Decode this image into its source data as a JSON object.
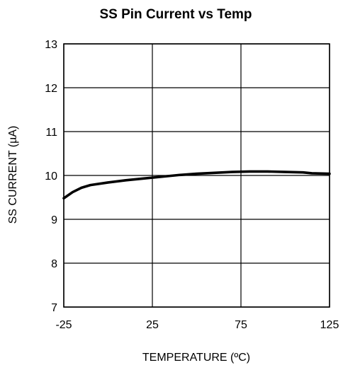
{
  "chart_data": {
    "type": "line",
    "title": "SS Pin Current vs Temp",
    "xlabel": "TEMPERATURE (ºC)",
    "ylabel": "SS CURRENT (µA)",
    "xlim": [
      -25,
      125
    ],
    "ylim": [
      7,
      13
    ],
    "x_ticks": [
      -25,
      25,
      75,
      125
    ],
    "y_ticks": [
      7,
      8,
      9,
      10,
      11,
      12,
      13
    ],
    "x_tick_labels": [
      "-25",
      "25",
      "75",
      "125"
    ],
    "y_tick_labels": [
      "7",
      "8",
      "9",
      "10",
      "11",
      "12",
      "13"
    ],
    "grid": true,
    "line_color": "#000000",
    "series": [
      {
        "x": [
          -25,
          -20,
          -15,
          -10,
          0,
          10,
          20,
          30,
          40,
          50,
          60,
          70,
          80,
          90,
          100,
          110,
          115,
          125
        ],
        "y": [
          9.48,
          9.62,
          9.72,
          9.78,
          9.84,
          9.89,
          9.93,
          9.97,
          10.01,
          10.04,
          10.06,
          10.08,
          10.09,
          10.09,
          10.08,
          10.07,
          10.05,
          10.04
        ]
      }
    ]
  }
}
